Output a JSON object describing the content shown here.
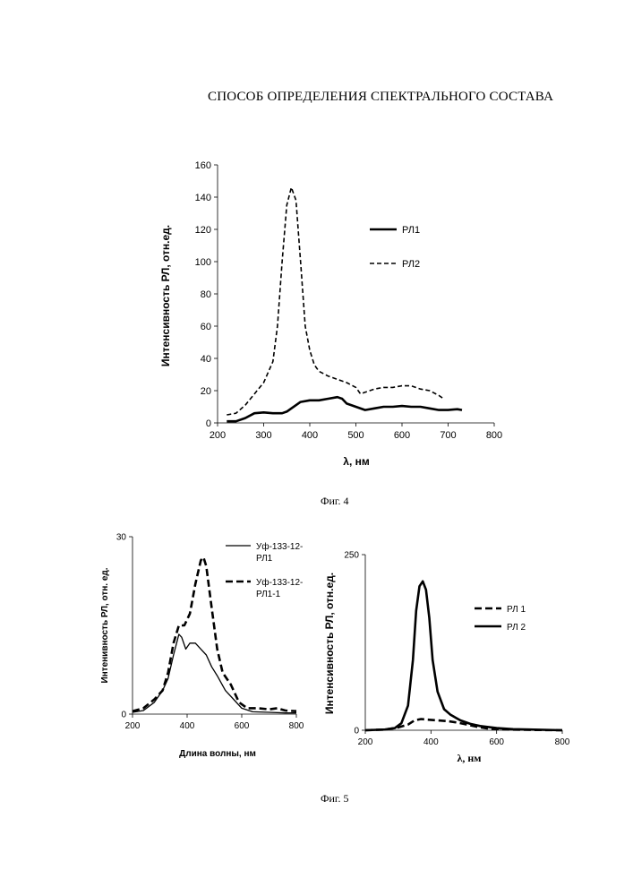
{
  "document": {
    "heading": "СПОСОБ ОПРЕДЕЛЕНИЯ СПЕКТРАЛЬНОГО СОСТАВА",
    "fig4_caption": "Фиг. 4",
    "fig5_caption": "Фиг. 5"
  },
  "chart_data": [
    {
      "type": "line",
      "title": "",
      "xlabel": "λ, нм",
      "ylabel": "Интенсивность РЛ, отн.ед.",
      "xlim": [
        200,
        800
      ],
      "ylim": [
        0,
        160
      ],
      "xticks": [
        200,
        300,
        400,
        500,
        600,
        700,
        800
      ],
      "yticks": [
        0,
        20,
        40,
        60,
        80,
        100,
        120,
        140,
        160
      ],
      "grid": false,
      "legend": "right",
      "series": [
        {
          "name": "РЛ1",
          "style": "solid-thick",
          "points": [
            [
              220,
              1
            ],
            [
              240,
              1
            ],
            [
              260,
              3
            ],
            [
              280,
              6
            ],
            [
              300,
              6.5
            ],
            [
              320,
              6
            ],
            [
              340,
              6
            ],
            [
              350,
              7
            ],
            [
              360,
              9
            ],
            [
              380,
              13
            ],
            [
              400,
              14
            ],
            [
              420,
              14
            ],
            [
              440,
              15
            ],
            [
              460,
              16
            ],
            [
              470,
              15
            ],
            [
              480,
              12
            ],
            [
              500,
              10
            ],
            [
              520,
              8
            ],
            [
              540,
              9
            ],
            [
              560,
              10
            ],
            [
              580,
              10
            ],
            [
              600,
              10.5
            ],
            [
              620,
              10
            ],
            [
              640,
              10
            ],
            [
              660,
              9
            ],
            [
              680,
              8
            ],
            [
              700,
              8
            ],
            [
              720,
              8.5
            ],
            [
              730,
              8
            ]
          ]
        },
        {
          "name": "РЛ2",
          "style": "dashed",
          "points": [
            [
              220,
              5
            ],
            [
              240,
              6
            ],
            [
              260,
              11
            ],
            [
              280,
              18
            ],
            [
              300,
              25
            ],
            [
              320,
              38
            ],
            [
              330,
              60
            ],
            [
              340,
              100
            ],
            [
              350,
              135
            ],
            [
              360,
              146
            ],
            [
              370,
              138
            ],
            [
              380,
              100
            ],
            [
              390,
              60
            ],
            [
              400,
              45
            ],
            [
              410,
              36
            ],
            [
              420,
              32
            ],
            [
              440,
              29
            ],
            [
              460,
              27
            ],
            [
              480,
              25
            ],
            [
              500,
              22
            ],
            [
              510,
              18
            ],
            [
              520,
              19
            ],
            [
              540,
              21
            ],
            [
              560,
              22
            ],
            [
              580,
              22
            ],
            [
              600,
              23
            ],
            [
              620,
              23
            ],
            [
              640,
              21
            ],
            [
              660,
              20
            ],
            [
              680,
              17
            ],
            [
              690,
              15
            ]
          ]
        }
      ]
    },
    {
      "type": "line",
      "title": "",
      "xlabel": "Длина волны, нм",
      "ylabel": "Интенивность РЛ, отн. ед.",
      "xlim": [
        200,
        800
      ],
      "ylim": [
        0,
        30
      ],
      "xticks": [
        200,
        400,
        600,
        800
      ],
      "yticks": [
        0,
        30
      ],
      "grid": false,
      "legend": "right",
      "series": [
        {
          "name": "Уф-133-12-РЛ1",
          "style": "solid-thin",
          "points": [
            [
              200,
              0.3
            ],
            [
              240,
              0.6
            ],
            [
              280,
              2
            ],
            [
              310,
              4
            ],
            [
              330,
              6
            ],
            [
              350,
              10
            ],
            [
              370,
              13.5
            ],
            [
              380,
              13
            ],
            [
              395,
              11
            ],
            [
              410,
              12
            ],
            [
              430,
              12
            ],
            [
              450,
              11
            ],
            [
              470,
              10
            ],
            [
              490,
              8
            ],
            [
              510,
              6.5
            ],
            [
              540,
              4
            ],
            [
              570,
              2.5
            ],
            [
              600,
              1
            ],
            [
              640,
              0.4
            ],
            [
              700,
              0.3
            ],
            [
              760,
              0.2
            ],
            [
              800,
              0.2
            ]
          ]
        },
        {
          "name": "Уф-133-12-РЛ1-1",
          "style": "dashed-thick",
          "points": [
            [
              200,
              0.5
            ],
            [
              240,
              1
            ],
            [
              280,
              2.5
            ],
            [
              310,
              4
            ],
            [
              330,
              7
            ],
            [
              350,
              12
            ],
            [
              370,
              15
            ],
            [
              390,
              15
            ],
            [
              410,
              17
            ],
            [
              430,
              22
            ],
            [
              450,
              26
            ],
            [
              460,
              26.5
            ],
            [
              470,
              25
            ],
            [
              490,
              18
            ],
            [
              510,
              11
            ],
            [
              530,
              7
            ],
            [
              560,
              5
            ],
            [
              590,
              2
            ],
            [
              620,
              1
            ],
            [
              660,
              1
            ],
            [
              700,
              0.8
            ],
            [
              730,
              1
            ],
            [
              760,
              0.6
            ],
            [
              800,
              0.5
            ]
          ]
        }
      ]
    },
    {
      "type": "line",
      "title": "",
      "xlabel": "λ, нм",
      "ylabel": "Интенсивность РЛ, отн.ед.",
      "xlim": [
        200,
        800
      ],
      "ylim": [
        0,
        250
      ],
      "xticks": [
        200,
        400,
        600,
        800
      ],
      "yticks": [
        0,
        250
      ],
      "grid": false,
      "legend": "right",
      "series": [
        {
          "name": "РЛ 1",
          "style": "dashed-thick",
          "points": [
            [
              200,
              0
            ],
            [
              260,
              1
            ],
            [
              300,
              4
            ],
            [
              330,
              8
            ],
            [
              350,
              14
            ],
            [
              370,
              16
            ],
            [
              390,
              15
            ],
            [
              420,
              14
            ],
            [
              450,
              13
            ],
            [
              480,
              11
            ],
            [
              510,
              8
            ],
            [
              540,
              5
            ],
            [
              580,
              2
            ],
            [
              640,
              1
            ],
            [
              700,
              0.5
            ],
            [
              800,
              0
            ]
          ]
        },
        {
          "name": "РЛ 2",
          "style": "solid-thick",
          "points": [
            [
              200,
              0
            ],
            [
              260,
              1
            ],
            [
              290,
              3
            ],
            [
              310,
              10
            ],
            [
              330,
              35
            ],
            [
              345,
              100
            ],
            [
              355,
              170
            ],
            [
              365,
              205
            ],
            [
              375,
              212
            ],
            [
              385,
              200
            ],
            [
              395,
              160
            ],
            [
              405,
              100
            ],
            [
              420,
              55
            ],
            [
              440,
              30
            ],
            [
              460,
              22
            ],
            [
              490,
              14
            ],
            [
              520,
              9
            ],
            [
              550,
              6
            ],
            [
              600,
              3
            ],
            [
              650,
              1.5
            ],
            [
              700,
              1
            ],
            [
              800,
              0
            ]
          ]
        }
      ]
    }
  ]
}
